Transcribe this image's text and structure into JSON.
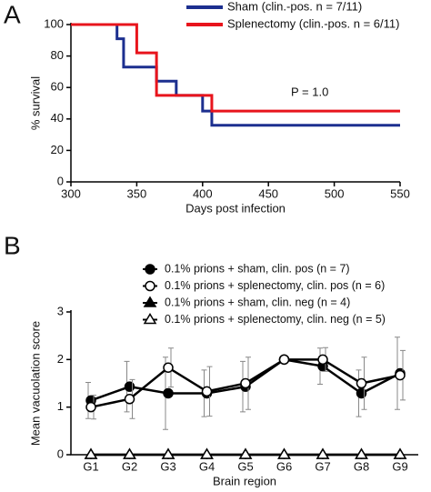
{
  "chart_data": [
    {
      "type": "step",
      "panel_label": "A",
      "x_label": "Days post infection",
      "y_label": "% survival",
      "annotation": "P = 1.0",
      "xlim": [
        300,
        550
      ],
      "xticks": [
        300,
        350,
        400,
        450,
        500,
        550
      ],
      "ylim": [
        0,
        100
      ],
      "yticks": [
        0,
        20,
        40,
        60,
        80,
        100
      ],
      "series": [
        {
          "name": "Sham (clin.-pos. n = 7/11)",
          "color": "#1c2f8f",
          "x": [
            300,
            335,
            340,
            365,
            380,
            400,
            407,
            550
          ],
          "values": [
            100,
            91,
            73,
            64,
            55,
            45,
            36,
            36
          ]
        },
        {
          "name": "Splenectomy (clin.-pos. n = 6/11)",
          "color": "#e8141c",
          "x": [
            300,
            350,
            365,
            407,
            550
          ],
          "values": [
            100,
            82,
            55,
            45,
            45
          ]
        }
      ]
    },
    {
      "type": "line",
      "panel_label": "B",
      "x_label": "Brain region",
      "y_label": "Mean vacuolation score",
      "categories": [
        "G1",
        "G2",
        "G3",
        "G4",
        "G5",
        "G6",
        "G7",
        "G8",
        "G9"
      ],
      "ylim": [
        0,
        3
      ],
      "yticks": [
        0,
        1,
        2,
        3
      ],
      "series": [
        {
          "name": "0.1% prions + sham, clin. pos (n = 7)",
          "color": "#000000",
          "marker": "circle",
          "filled": true,
          "values": [
            1.14,
            1.43,
            1.29,
            1.29,
            1.43,
            2.0,
            1.86,
            1.29,
            1.71
          ],
          "errors": [
            0.38,
            0.53,
            0.76,
            0.49,
            0.53,
            0,
            0.38,
            0.49,
            0.76
          ]
        },
        {
          "name": "0.1% prions + splenectomy, clin. pos (n = 6)",
          "color": "#000000",
          "marker": "circle",
          "filled": false,
          "values": [
            1.0,
            1.17,
            1.83,
            1.33,
            1.5,
            2.0,
            2.0,
            1.5,
            1.67
          ],
          "errors": [
            0.25,
            0.41,
            0.41,
            0.52,
            0.55,
            0,
            0.25,
            0.55,
            0.52
          ]
        },
        {
          "name": "0.1% prions + sham, clin. neg (n = 4)",
          "color": "#000000",
          "marker": "triangle",
          "filled": true,
          "values": [
            0,
            0,
            0,
            0,
            0,
            0,
            0,
            0,
            0
          ]
        },
        {
          "name": "0.1% prions + splenectomy, clin. neg (n = 5)",
          "color": "#000000",
          "marker": "triangle",
          "filled": false,
          "values": [
            0,
            0,
            0,
            0,
            0,
            0,
            0,
            0,
            0
          ]
        }
      ]
    }
  ]
}
